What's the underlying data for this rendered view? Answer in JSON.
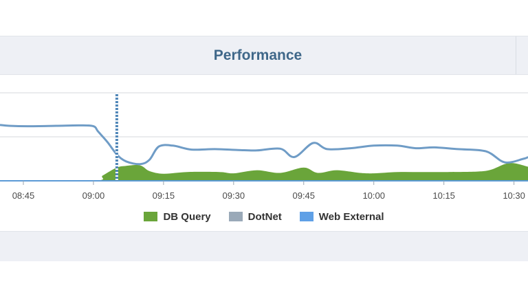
{
  "panel": {
    "title": "Performance"
  },
  "colors": {
    "db_query": "#6aa53a",
    "dotnet": "#9aa9b8",
    "web_external": "#6f9cc6",
    "marker": "#4f86b8"
  },
  "legend": [
    {
      "label": "DB Query",
      "color": "#6aa53a"
    },
    {
      "label": "DotNet",
      "color": "#9aa9b8"
    },
    {
      "label": "Web External",
      "color": "#5fa0e6"
    }
  ],
  "chart_data": {
    "type": "area",
    "x_ticks": [
      "08:45",
      "09:00",
      "09:15",
      "09:30",
      "09:45",
      "10:00",
      "10:15",
      "10:30"
    ],
    "x_range": [
      "08:40",
      "10:33"
    ],
    "y_range": [
      0,
      2
    ],
    "grid": true,
    "legend_position": "bottom",
    "marker_time": "09:05",
    "series": [
      {
        "name": "Web External",
        "kind": "line",
        "x": [
          "08:40",
          "08:42",
          "08:46",
          "08:52",
          "08:57",
          "09:00",
          "09:01",
          "09:03",
          "09:05",
          "09:07",
          "09:10",
          "09:12",
          "09:14",
          "09:17",
          "09:21",
          "09:26",
          "09:31",
          "09:35",
          "09:40",
          "09:43",
          "09:47",
          "09:50",
          "09:55",
          "10:00",
          "10:05",
          "10:09",
          "10:13",
          "10:18",
          "10:24",
          "10:28",
          "10:32",
          "10:33"
        ],
        "values": [
          1.27,
          1.25,
          1.24,
          1.25,
          1.26,
          1.24,
          1.12,
          0.88,
          0.6,
          0.44,
          0.38,
          0.48,
          0.78,
          0.8,
          0.71,
          0.72,
          0.7,
          0.69,
          0.73,
          0.54,
          0.86,
          0.72,
          0.74,
          0.8,
          0.8,
          0.74,
          0.76,
          0.72,
          0.67,
          0.42,
          0.5,
          0.54
        ]
      },
      {
        "name": "DB Query",
        "kind": "area",
        "x": [
          "08:40",
          "09:00",
          "09:02",
          "09:05",
          "09:07",
          "09:10",
          "09:12",
          "09:15",
          "09:20",
          "09:27",
          "09:30",
          "09:35",
          "09:40",
          "09:45",
          "09:48",
          "09:52",
          "09:57",
          "10:00",
          "10:05",
          "10:10",
          "10:15",
          "10:22",
          "10:25",
          "10:28",
          "10:30",
          "10:33"
        ],
        "values": [
          0,
          0,
          0.12,
          0.3,
          0.34,
          0.35,
          0.22,
          0.16,
          0.2,
          0.2,
          0.17,
          0.24,
          0.18,
          0.3,
          0.18,
          0.24,
          0.18,
          0.17,
          0.2,
          0.2,
          0.2,
          0.21,
          0.25,
          0.38,
          0.4,
          0.32
        ]
      }
    ]
  }
}
